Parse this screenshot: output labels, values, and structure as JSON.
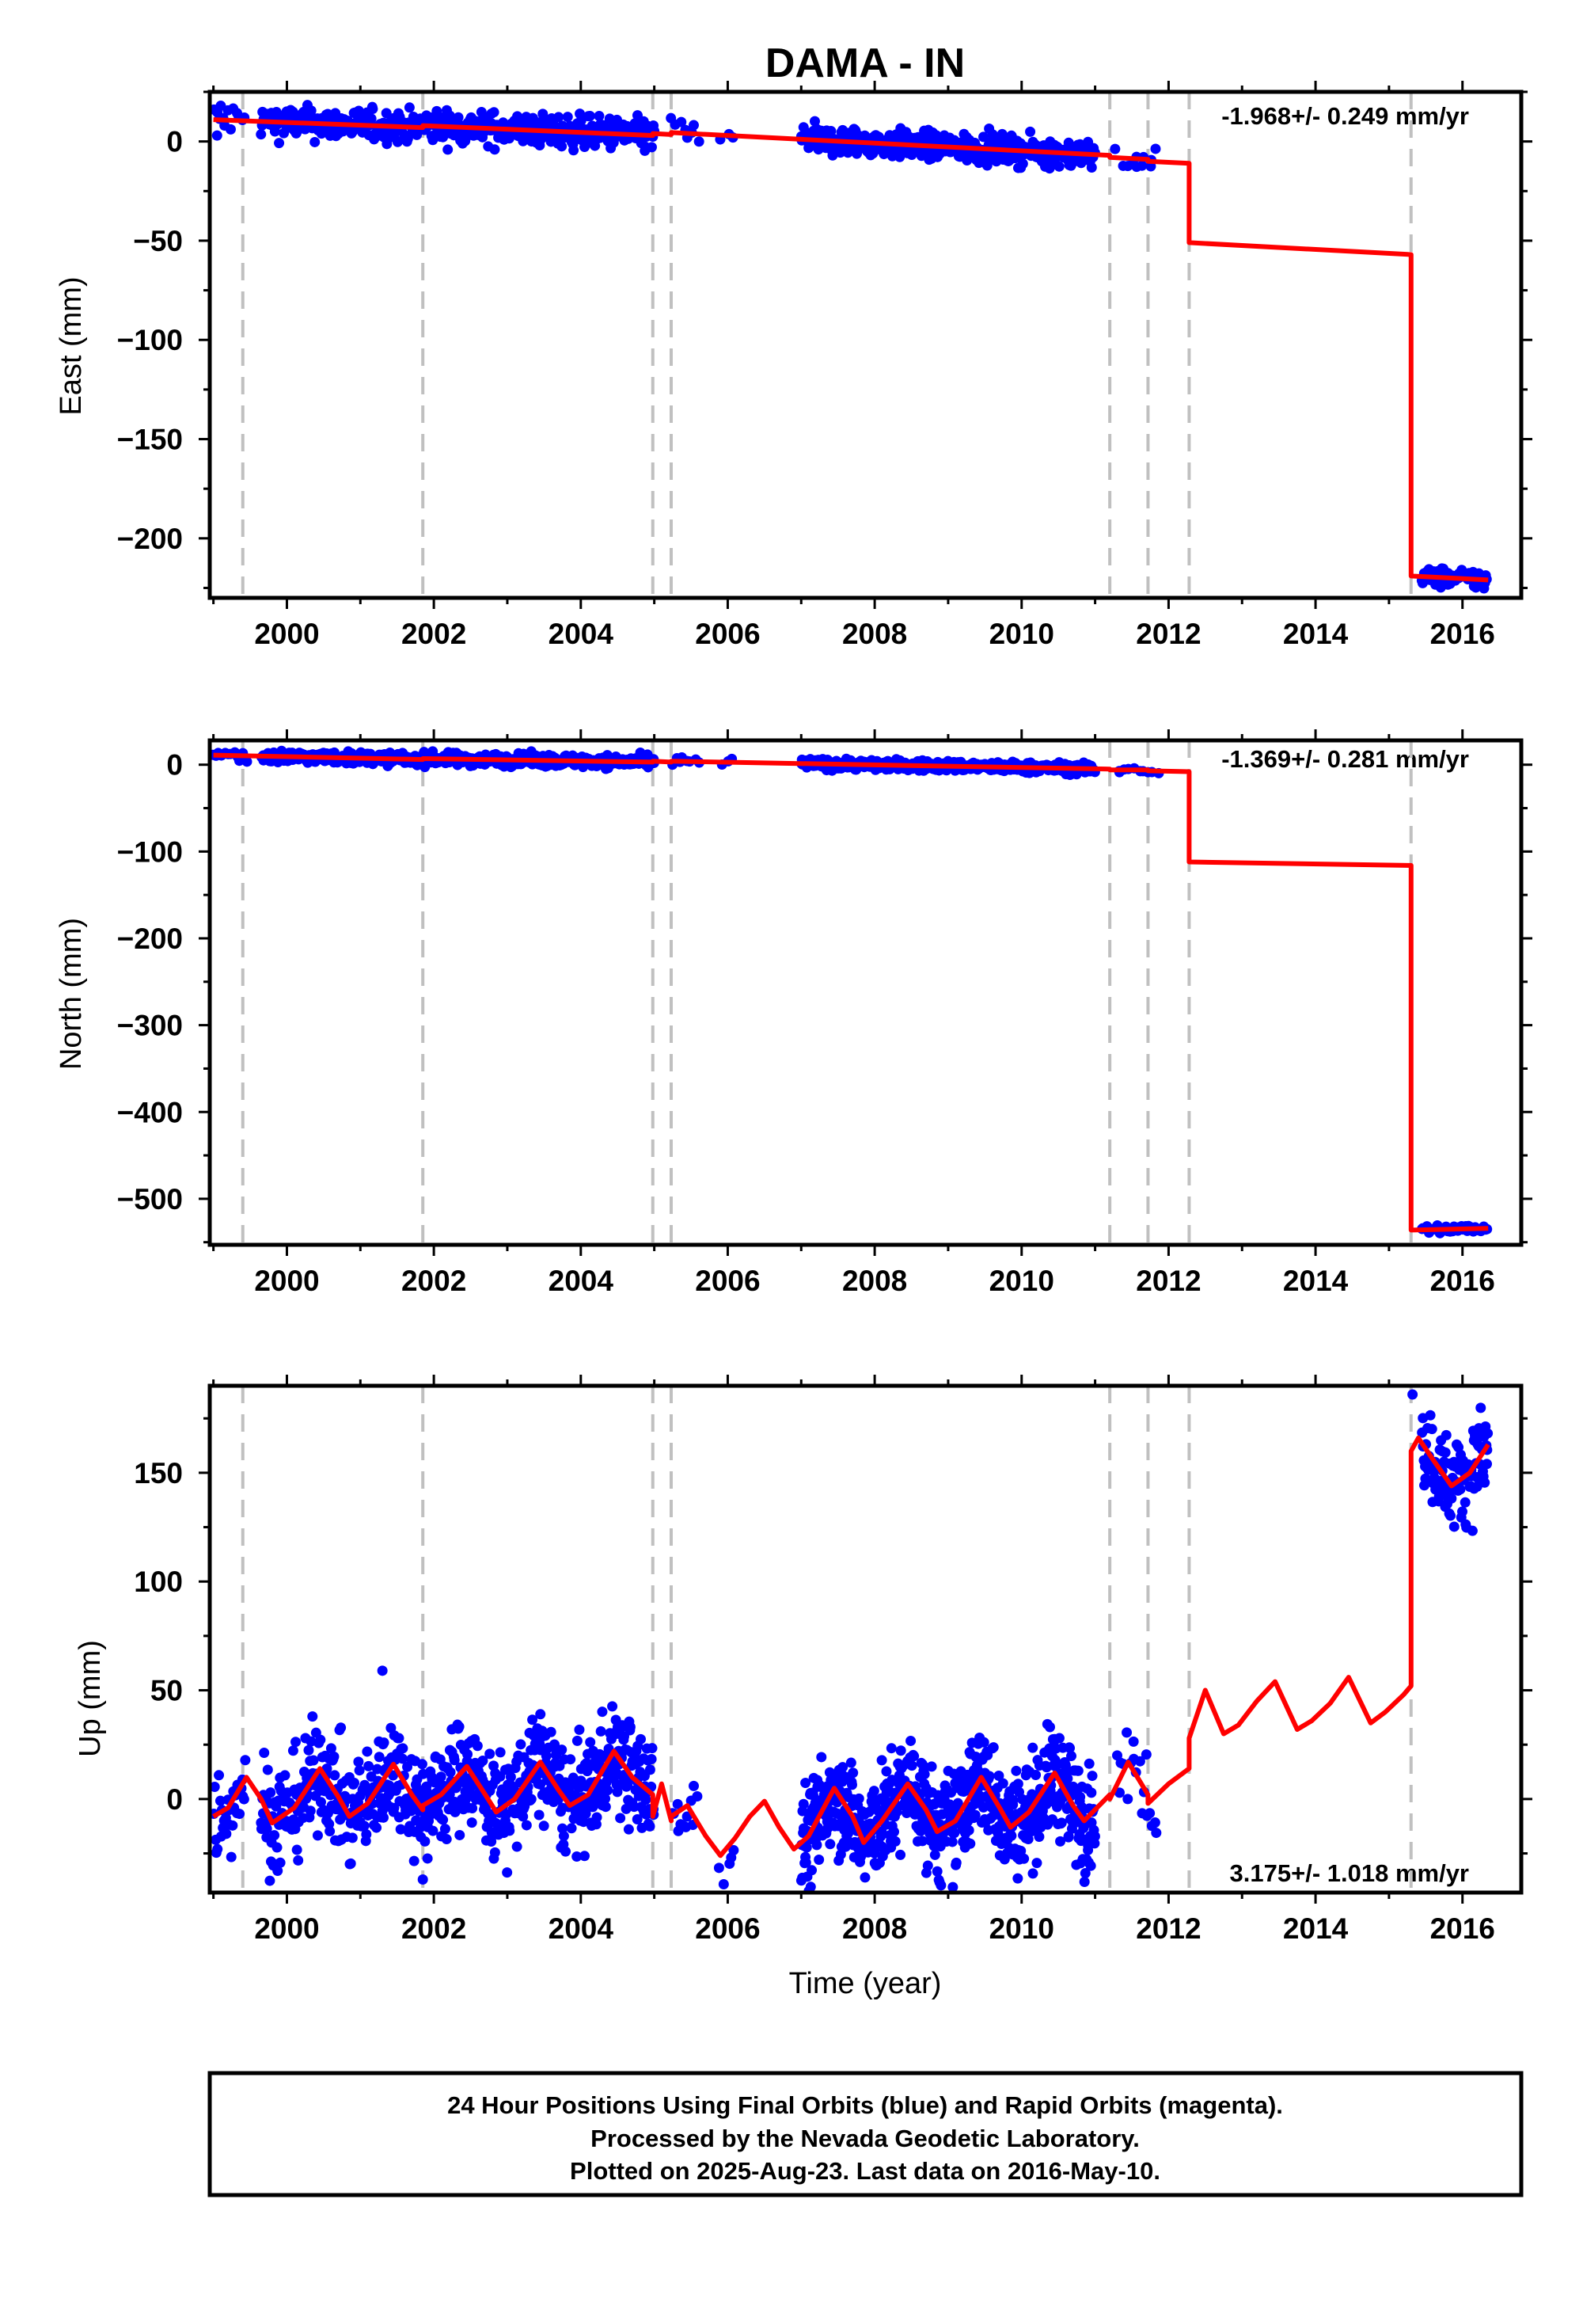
{
  "chart_data": {
    "type": "scatter",
    "title": "DAMA - IN",
    "xlabel": "Time (year)",
    "x_ticks": [
      2000,
      2002,
      2004,
      2006,
      2008,
      2010,
      2012,
      2014,
      2016
    ],
    "xlim": [
      1998.95,
      2016.8
    ],
    "event_lines": [
      1999.4,
      2001.85,
      2004.98,
      2005.23,
      2011.2,
      2011.72,
      2012.28,
      2015.3
    ],
    "colors": {
      "data": "#0000ff",
      "model": "#ff0000",
      "events": "#c0c0c0"
    },
    "panels": [
      {
        "name": "east",
        "ylabel": "East (mm)",
        "ylim": [
          -230,
          25
        ],
        "y_ticks": [
          0,
          -50,
          -100,
          -150,
          -200
        ],
        "rate_label": "-1.968+/- 0.249 mm/yr",
        "model": [
          [
            1999.0,
            11
          ],
          [
            2001.85,
            7
          ],
          [
            2001.85,
            8
          ],
          [
            2004.98,
            3
          ],
          [
            2004.98,
            4
          ],
          [
            2005.23,
            3.5
          ],
          [
            2005.23,
            4.5
          ],
          [
            2011.2,
            -7
          ],
          [
            2011.2,
            -8
          ],
          [
            2011.72,
            -9
          ],
          [
            2011.72,
            -10
          ],
          [
            2012.28,
            -11
          ],
          [
            2012.28,
            -51
          ],
          [
            2015.3,
            -57
          ],
          [
            2015.3,
            -219
          ],
          [
            2016.35,
            -221
          ]
        ],
        "data_segments": [
          [
            1999.0,
            1999.45,
            11,
            5,
            0.04
          ],
          [
            1999.65,
            2001.85,
            7,
            4,
            0.012
          ],
          [
            2001.85,
            2005.0,
            3,
            4,
            0.01
          ],
          [
            2005.25,
            2005.6,
            2,
            4,
            0.05
          ],
          [
            2005.9,
            2006.1,
            3,
            3,
            0.08
          ],
          [
            2007.0,
            2011.0,
            -4,
            3.5,
            0.01
          ],
          [
            2011.3,
            2011.55,
            -7,
            3,
            0.06
          ],
          [
            2011.55,
            2011.85,
            -9,
            3,
            0.06
          ],
          [
            2015.45,
            2016.35,
            -220,
            2.5,
            0.015
          ]
        ],
        "outliers": [
          [
            1999.05,
            3
          ],
          [
            1999.1,
            18
          ]
        ]
      },
      {
        "name": "north",
        "ylabel": "North (mm)",
        "ylim": [
          -553,
          28
        ],
        "y_ticks": [
          0,
          -100,
          -200,
          -300,
          -400,
          -500
        ],
        "rate_label": "-1.369+/- 0.281 mm/yr",
        "model": [
          [
            1999.0,
            11
          ],
          [
            2001.85,
            6
          ],
          [
            2001.85,
            7
          ],
          [
            2004.98,
            3
          ],
          [
            2004.98,
            4
          ],
          [
            2005.23,
            3
          ],
          [
            2005.23,
            4
          ],
          [
            2011.2,
            -5
          ],
          [
            2011.2,
            -6
          ],
          [
            2011.72,
            -6
          ],
          [
            2011.72,
            -7
          ],
          [
            2012.28,
            -8
          ],
          [
            2012.28,
            -112
          ],
          [
            2015.3,
            -116
          ],
          [
            2015.3,
            -536
          ],
          [
            2016.35,
            -534
          ]
        ],
        "data_segments": [
          [
            1999.0,
            1999.45,
            11,
            4,
            0.04
          ],
          [
            1999.65,
            2001.85,
            6,
            3.5,
            0.012
          ],
          [
            2001.85,
            2005.0,
            3,
            3.5,
            0.01
          ],
          [
            2005.25,
            2005.6,
            3,
            3,
            0.05
          ],
          [
            2005.9,
            2006.1,
            2,
            3,
            0.08
          ],
          [
            2007.0,
            2011.0,
            -3,
            3,
            0.01
          ],
          [
            2011.3,
            2011.85,
            -6,
            3,
            0.06
          ],
          [
            2015.45,
            2016.35,
            -535,
            2.5,
            0.015
          ]
        ],
        "outliers": []
      },
      {
        "name": "up",
        "ylabel": "Up (mm)",
        "ylim": [
          -43,
          190
        ],
        "y_ticks": [
          150,
          100,
          50,
          0
        ],
        "rate_label": "3.175+/- 1.018 mm/yr",
        "model": [
          [
            1999.0,
            -8
          ],
          [
            1999.2,
            -4
          ],
          [
            1999.45,
            10
          ],
          [
            1999.65,
            0
          ],
          [
            1999.8,
            -11
          ],
          [
            2000.1,
            -4
          ],
          [
            2000.45,
            14
          ],
          [
            2000.7,
            1
          ],
          [
            2000.85,
            -8
          ],
          [
            2001.1,
            -2
          ],
          [
            2001.45,
            16
          ],
          [
            2001.7,
            2
          ],
          [
            2001.85,
            -5
          ],
          [
            2001.85,
            -3
          ],
          [
            2002.1,
            2
          ],
          [
            2002.45,
            15
          ],
          [
            2002.7,
            2
          ],
          [
            2002.85,
            -6
          ],
          [
            2003.1,
            0
          ],
          [
            2003.45,
            17
          ],
          [
            2003.7,
            4
          ],
          [
            2003.85,
            -3
          ],
          [
            2004.1,
            2
          ],
          [
            2004.45,
            22
          ],
          [
            2004.7,
            10
          ],
          [
            2004.98,
            2
          ],
          [
            2004.98,
            -8
          ],
          [
            2005.1,
            7
          ],
          [
            2005.23,
            -10
          ],
          [
            2005.23,
            -8
          ],
          [
            2005.45,
            -3
          ],
          [
            2005.7,
            -17
          ],
          [
            2005.9,
            -26
          ],
          [
            2006.1,
            -18
          ],
          [
            2006.3,
            -8
          ],
          [
            2006.5,
            -1
          ],
          [
            2006.7,
            -13
          ],
          [
            2006.9,
            -23
          ],
          [
            2007.1,
            -17
          ],
          [
            2007.45,
            5
          ],
          [
            2007.7,
            -8
          ],
          [
            2007.85,
            -20
          ],
          [
            2008.1,
            -10
          ],
          [
            2008.45,
            7
          ],
          [
            2008.7,
            -5
          ],
          [
            2008.85,
            -15
          ],
          [
            2009.1,
            -10
          ],
          [
            2009.45,
            10
          ],
          [
            2009.7,
            -4
          ],
          [
            2009.85,
            -13
          ],
          [
            2010.1,
            -6
          ],
          [
            2010.45,
            12
          ],
          [
            2010.7,
            -3
          ],
          [
            2010.85,
            -10
          ],
          [
            2011.2,
            2
          ],
          [
            2011.2,
            0
          ],
          [
            2011.45,
            17
          ],
          [
            2011.72,
            2
          ],
          [
            2011.72,
            -2
          ],
          [
            2012.0,
            7
          ],
          [
            2012.28,
            14
          ],
          [
            2012.28,
            28
          ],
          [
            2012.5,
            50
          ],
          [
            2012.75,
            30
          ],
          [
            2012.95,
            34
          ],
          [
            2013.2,
            45
          ],
          [
            2013.45,
            54
          ],
          [
            2013.75,
            32
          ],
          [
            2013.95,
            36
          ],
          [
            2014.2,
            44
          ],
          [
            2014.45,
            56
          ],
          [
            2014.75,
            35
          ],
          [
            2014.95,
            40
          ],
          [
            2015.2,
            48
          ],
          [
            2015.3,
            52
          ],
          [
            2015.3,
            160
          ],
          [
            2015.4,
            166
          ],
          [
            2015.6,
            156
          ],
          [
            2015.85,
            144
          ],
          [
            2016.1,
            150
          ],
          [
            2016.35,
            163
          ]
        ],
        "data_segments": [
          [
            1999.0,
            1999.45,
            2,
            11,
            0.015
          ],
          [
            1999.65,
            2001.85,
            3,
            12,
            0.008
          ],
          [
            2001.85,
            2005.0,
            5,
            12,
            0.007
          ],
          [
            2005.25,
            2005.6,
            -4,
            10,
            0.03
          ],
          [
            2005.9,
            2006.1,
            -8,
            8,
            0.05
          ],
          [
            2007.0,
            2011.0,
            -3,
            12,
            0.006
          ],
          [
            2011.3,
            2011.85,
            6,
            10,
            0.03
          ],
          [
            2015.45,
            2016.35,
            152,
            10,
            0.008
          ]
        ],
        "outliers": [
          [
            2001.3,
            59
          ],
          [
            2001.85,
            -37
          ],
          [
            2003.45,
            39
          ],
          [
            2015.32,
            186
          ]
        ]
      }
    ]
  },
  "footer": {
    "line1": "24 Hour Positions Using Final Orbits (blue) and Rapid Orbits (magenta).",
    "line2": "Processed by the Nevada Geodetic Laboratory.",
    "line3": "Plotted on 2025-Aug-23. Last data on 2016-May-10."
  }
}
